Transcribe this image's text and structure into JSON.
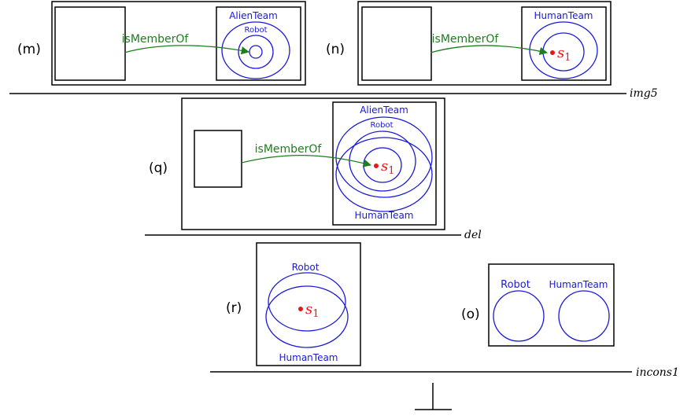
{
  "colors": {
    "set": "#1a1ad6",
    "relation": "#1e7d1e",
    "individual": "#e31a1a",
    "line": "#000000"
  },
  "symbols": {
    "individual_base": "s",
    "individual_sub": "1"
  },
  "relation_label": "isMemberOf",
  "panels": {
    "m": {
      "tag": "(m)",
      "outer_set": "AlienTeam",
      "inner_set": "Robot"
    },
    "n": {
      "tag": "(n)",
      "set": "HumanTeam"
    },
    "q": {
      "tag": "(q)",
      "top_set": "AlienTeam",
      "inner_set": "Robot",
      "bottom_set": "HumanTeam"
    },
    "r": {
      "tag": "(r)",
      "set_a": "Robot",
      "set_b": "HumanTeam"
    },
    "o": {
      "tag": "(o)",
      "set_a": "Robot",
      "set_b": "HumanTeam"
    }
  },
  "levels": {
    "img5": "img5",
    "del": "del",
    "incons1": "incons1"
  },
  "bottom_symbol": "⊥"
}
